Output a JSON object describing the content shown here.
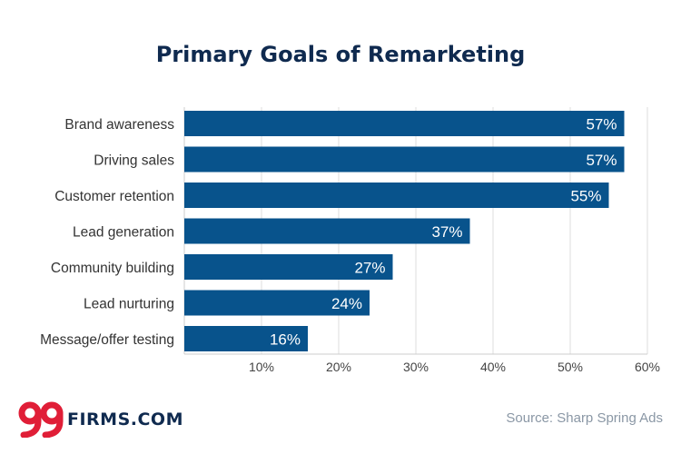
{
  "colors": {
    "bar": "#08538c",
    "title": "#0f2a4f",
    "label": "#333333",
    "tick": "#444444",
    "grid": "#dddddd",
    "logo_red": "#e01e37",
    "source": "#8a97a5"
  },
  "chart_data": {
    "type": "bar",
    "orientation": "horizontal",
    "title": "Primary Goals of Remarketing",
    "categories": [
      "Brand awareness",
      "Driving sales",
      "Customer retention",
      "Lead generation",
      "Community building",
      "Lead nurturing",
      "Message/offer testing"
    ],
    "values": [
      57,
      57,
      55,
      37,
      27,
      24,
      16
    ],
    "value_labels": [
      "57%",
      "57%",
      "55%",
      "37%",
      "27%",
      "24%",
      "16%"
    ],
    "xlim": [
      0,
      60
    ],
    "xticks": [
      10,
      20,
      30,
      40,
      50,
      60
    ],
    "xtick_labels": [
      "10%",
      "20%",
      "30%",
      "40%",
      "50%",
      "60%"
    ],
    "grid": true
  },
  "footer": {
    "logo_mark": "99",
    "logo_text": "FIRMS.COM",
    "source": "Source: Sharp Spring Ads"
  }
}
